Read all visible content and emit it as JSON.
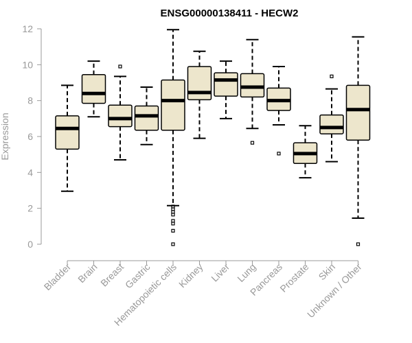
{
  "chart_data": {
    "type": "boxplot",
    "title": "ENSG00000138411 - HECW2",
    "ylabel": "Expression",
    "ylim": [
      0,
      12
    ],
    "yticks": [
      "0",
      "2",
      "4",
      "6",
      "8",
      "10",
      "12"
    ],
    "box_color": "#EDE6CC",
    "categories": [
      "Bladder",
      "Brain",
      "Breast",
      "Gastric",
      "Hematopoietic cells",
      "Kidney",
      "Liver",
      "Lung",
      "Pancreas",
      "Prostate",
      "Skin",
      "Unknown / Other"
    ],
    "boxes": [
      {
        "name": "Bladder",
        "whislo": 2.95,
        "q1": 5.3,
        "med": 6.45,
        "q3": 7.15,
        "whishi": 8.85,
        "fliers": []
      },
      {
        "name": "Brain",
        "whislo": 7.1,
        "q1": 7.85,
        "med": 8.4,
        "q3": 9.45,
        "whishi": 10.2,
        "fliers": []
      },
      {
        "name": "Breast",
        "whislo": 4.7,
        "q1": 6.55,
        "med": 7.0,
        "q3": 7.75,
        "whishi": 9.35,
        "fliers": [
          9.9
        ]
      },
      {
        "name": "Gastric",
        "whislo": 5.55,
        "q1": 6.35,
        "med": 7.15,
        "q3": 7.7,
        "whishi": 8.75,
        "fliers": []
      },
      {
        "name": "Hematopoietic cells",
        "whislo": 2.15,
        "q1": 6.35,
        "med": 8.0,
        "q3": 9.15,
        "whishi": 11.95,
        "fliers": [
          2.1,
          1.95,
          1.8,
          1.65,
          1.3,
          1.15,
          0.75,
          0.0
        ]
      },
      {
        "name": "Kidney",
        "whislo": 5.9,
        "q1": 8.05,
        "med": 8.45,
        "q3": 9.9,
        "whishi": 10.75,
        "fliers": []
      },
      {
        "name": "Liver",
        "whislo": 7.0,
        "q1": 8.25,
        "med": 9.15,
        "q3": 9.55,
        "whishi": 10.2,
        "fliers": []
      },
      {
        "name": "Lung",
        "whislo": 6.45,
        "q1": 8.2,
        "med": 8.75,
        "q3": 9.5,
        "whishi": 11.4,
        "fliers": [
          5.65
        ]
      },
      {
        "name": "Pancreas",
        "whislo": 6.65,
        "q1": 7.45,
        "med": 8.0,
        "q3": 8.7,
        "whishi": 9.9,
        "fliers": [
          5.05
        ]
      },
      {
        "name": "Prostate",
        "whislo": 3.7,
        "q1": 4.5,
        "med": 5.05,
        "q3": 5.65,
        "whishi": 6.6,
        "fliers": []
      },
      {
        "name": "Skin",
        "whislo": 4.6,
        "q1": 6.15,
        "med": 6.5,
        "q3": 7.2,
        "whishi": 8.65,
        "fliers": [
          9.35
        ]
      },
      {
        "name": "Unknown / Other",
        "whislo": 1.45,
        "q1": 5.8,
        "med": 7.5,
        "q3": 8.85,
        "whishi": 11.55,
        "fliers": [
          0.0
        ]
      }
    ]
  }
}
